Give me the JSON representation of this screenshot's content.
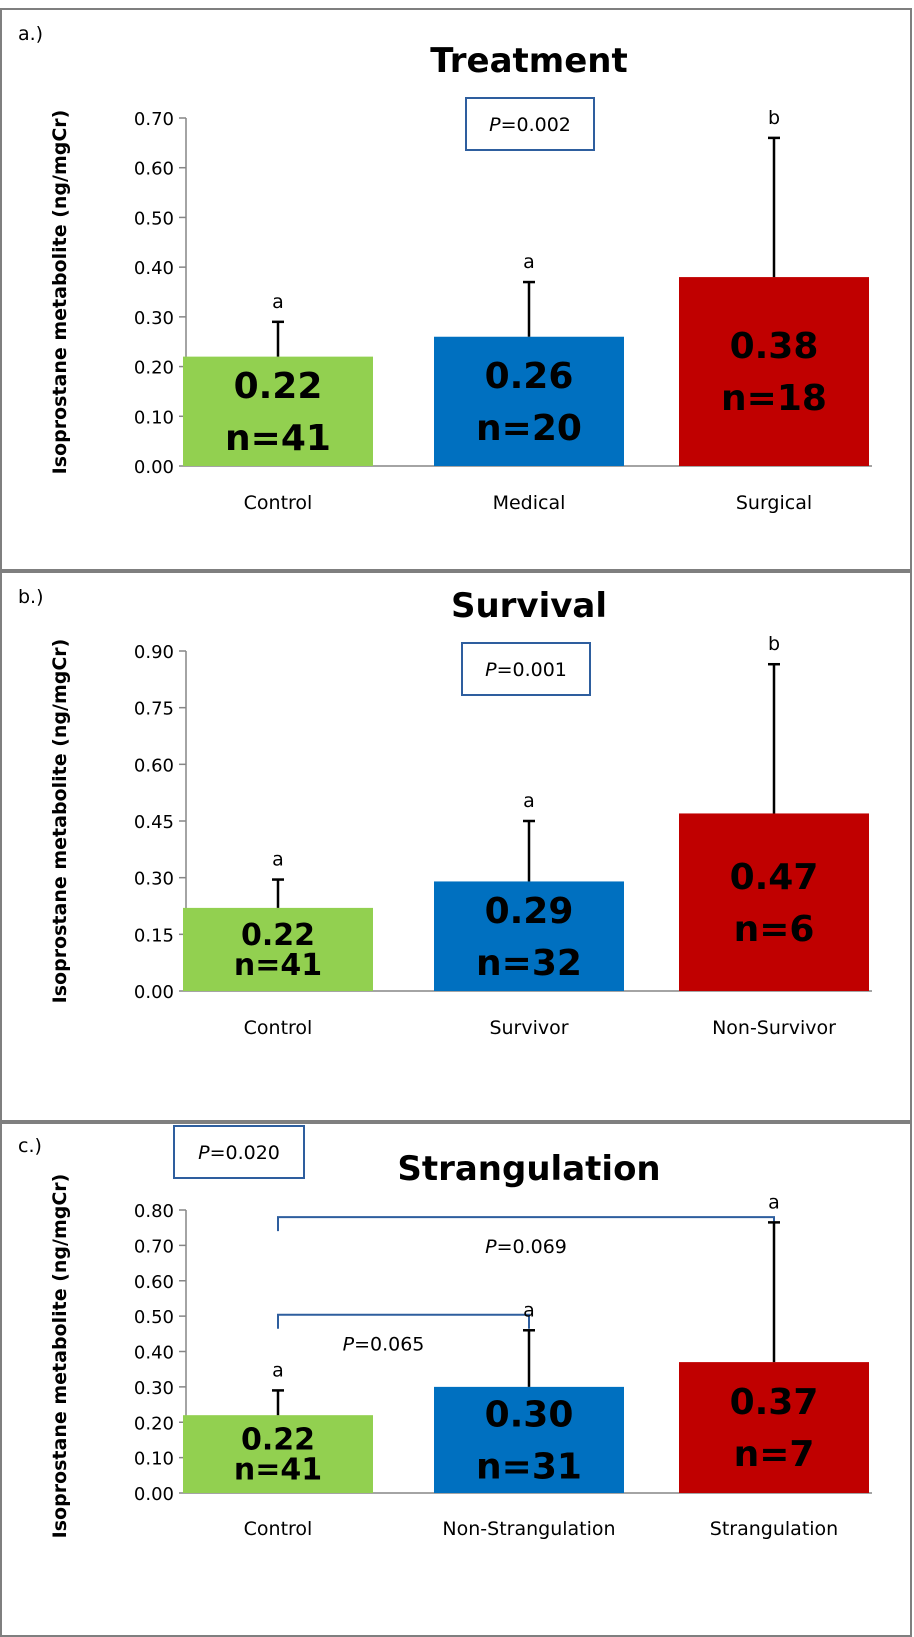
{
  "panels": [
    {
      "panel_label": "a.)",
      "p_box": "P=0.002",
      "brackets": [],
      "chart_data": {
        "type": "bar",
        "title": "Treatment",
        "xlabel": "",
        "ylabel": "Isoprostane metabolite (ng/mgCr)",
        "categories": [
          "Control",
          "Medical",
          "Surgical"
        ],
        "values": [
          0.22,
          0.26,
          0.38
        ],
        "error_upper": [
          0.29,
          0.37,
          0.66
        ],
        "value_labels": [
          "0.22",
          "0.26",
          "0.38"
        ],
        "n_labels": [
          "n=41",
          "n=20",
          "n=18"
        ],
        "sig_letters": [
          "a",
          "a",
          "b"
        ],
        "ylim": [
          0,
          0.7
        ],
        "yticks": [
          "0.00",
          "0.10",
          "0.20",
          "0.30",
          "0.40",
          "0.50",
          "0.60",
          "0.70"
        ],
        "grid": false,
        "colors": [
          "#92d050",
          "#0070c0",
          "#c00000"
        ]
      }
    },
    {
      "panel_label": "b.)",
      "p_box": "P=0.001",
      "brackets": [],
      "chart_data": {
        "type": "bar",
        "title": "Survival",
        "xlabel": "",
        "ylabel": "Isoprostane metabolite (ng/mgCr)",
        "categories": [
          "Control",
          "Survivor",
          "Non-Survivor"
        ],
        "values": [
          0.22,
          0.29,
          0.47
        ],
        "error_upper": [
          0.295,
          0.45,
          0.865
        ],
        "value_labels": [
          "0.22",
          "0.29",
          "0.47"
        ],
        "n_labels": [
          "n=41",
          "n=32",
          "n=6"
        ],
        "sig_letters": [
          "a",
          "a",
          "b"
        ],
        "ylim": [
          0,
          0.9
        ],
        "yticks": [
          "0.00",
          "0.15",
          "0.30",
          "0.45",
          "0.60",
          "0.75",
          "0.90"
        ],
        "grid": false,
        "colors": [
          "#92d050",
          "#0070c0",
          "#c00000"
        ]
      }
    },
    {
      "panel_label": "c.)",
      "p_box": "P=0.020",
      "brackets": [
        {
          "label": "P=0.069",
          "from": 0,
          "to": 2,
          "level": 0.975
        },
        {
          "label": "P=0.065",
          "from": 0,
          "to": 1,
          "level": 0.63
        }
      ],
      "chart_data": {
        "type": "bar",
        "title": "Strangulation",
        "xlabel": "",
        "ylabel": "Isoprostane metabolite (ng/mgCr)",
        "categories": [
          "Control",
          "Non-Strangulation",
          "Strangulation"
        ],
        "values": [
          0.22,
          0.3,
          0.37
        ],
        "error_upper": [
          0.29,
          0.46,
          0.765
        ],
        "value_labels": [
          "0.22",
          "0.30",
          "0.37"
        ],
        "n_labels": [
          "n=41",
          "n=31",
          "n=7"
        ],
        "sig_letters": [
          "a",
          "a",
          "a"
        ],
        "ylim": [
          0,
          0.8
        ],
        "yticks": [
          "0.00",
          "0.10",
          "0.20",
          "0.30",
          "0.40",
          "0.50",
          "0.60",
          "0.70",
          "0.80"
        ],
        "grid": false,
        "colors": [
          "#92d050",
          "#0070c0",
          "#c00000"
        ]
      }
    }
  ]
}
